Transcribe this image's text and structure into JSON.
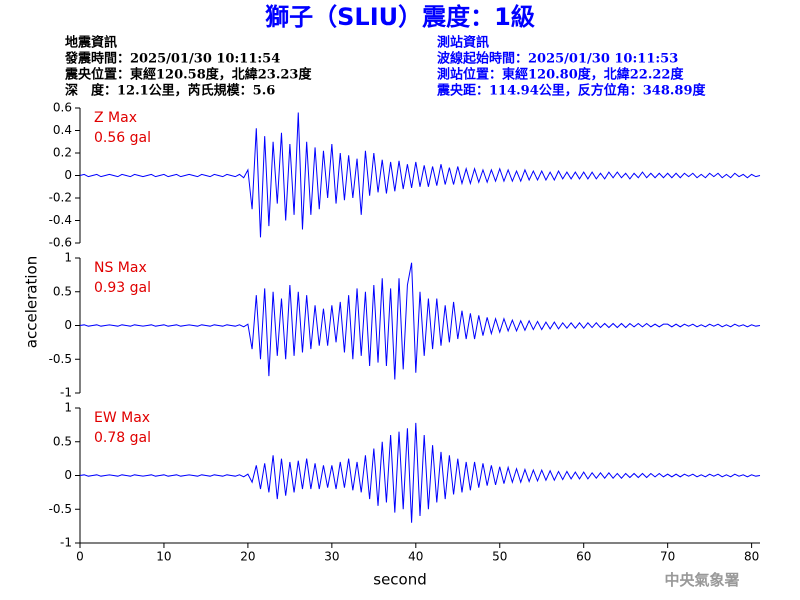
{
  "header": {
    "title": "獅子（SLIU）震度：1級",
    "left": [
      "地震資訊",
      "發震時間：2025/01/30 10:11:54",
      "震央位置：東經120.58度，北緯23.23度",
      "深　度：12.1公里，芮氏規模：5.6"
    ],
    "right": [
      "測站資訊",
      "波線起始時間：2025/01/30 10:11:53",
      "測站位置：東經120.80度，北緯22.22度",
      "震央距：114.94公里，反方位角：348.89度"
    ]
  },
  "footer": "中央氣象署",
  "chart_data": {
    "type": "line",
    "xlabel": "second",
    "ylabel": "acceleration",
    "xlim": [
      0,
      81
    ],
    "xticks": [
      0,
      10,
      20,
      30,
      40,
      50,
      60,
      70,
      80
    ],
    "x": [
      0,
      0.5,
      1,
      1.5,
      2,
      2.5,
      3,
      3.5,
      4,
      4.5,
      5,
      5.5,
      6,
      6.5,
      7,
      7.5,
      8,
      8.5,
      9,
      9.5,
      10,
      10.5,
      11,
      11.5,
      12,
      12.5,
      13,
      13.5,
      14,
      14.5,
      15,
      15.5,
      16,
      16.5,
      17,
      17.5,
      18,
      18.5,
      19,
      19.5,
      20,
      20.5,
      21,
      21.5,
      22,
      22.5,
      23,
      23.5,
      24,
      24.5,
      25,
      25.5,
      26,
      26.5,
      27,
      27.5,
      28,
      28.5,
      29,
      29.5,
      30,
      30.5,
      31,
      31.5,
      32,
      32.5,
      33,
      33.5,
      34,
      34.5,
      35,
      35.5,
      36,
      36.5,
      37,
      37.5,
      38,
      38.5,
      39,
      39.5,
      40,
      40.5,
      41,
      41.5,
      42,
      42.5,
      43,
      43.5,
      44,
      44.5,
      45,
      45.5,
      46,
      46.5,
      47,
      47.5,
      48,
      48.5,
      49,
      49.5,
      50,
      50.5,
      51,
      51.5,
      52,
      52.5,
      53,
      53.5,
      54,
      54.5,
      55,
      55.5,
      56,
      56.5,
      57,
      57.5,
      58,
      58.5,
      59,
      59.5,
      60,
      60.5,
      61,
      61.5,
      62,
      62.5,
      63,
      63.5,
      64,
      64.5,
      65,
      65.5,
      66,
      66.5,
      67,
      67.5,
      68,
      68.5,
      69,
      69.5,
      70,
      70.5,
      71,
      71.5,
      72,
      72.5,
      73,
      73.5,
      74,
      74.5,
      75,
      75.5,
      76,
      76.5,
      77,
      77.5,
      78,
      78.5,
      79,
      79.5,
      80,
      80.5,
      81
    ],
    "series": [
      {
        "name": "Z Max",
        "max_label": "0.56 gal",
        "color": "#0000ff",
        "ylim": [
          -0.6,
          0.6
        ],
        "yticks": [
          0.6,
          0.4,
          0.2,
          0,
          -0.2,
          -0.4,
          -0.6
        ],
        "values": [
          0,
          0.01,
          -0.01,
          0,
          0.01,
          -0.01,
          0,
          0.01,
          0,
          -0.01,
          0.01,
          0,
          -0.01,
          0.01,
          0,
          -0.01,
          0,
          0.01,
          -0.01,
          0,
          0.01,
          -0.01,
          0,
          0.01,
          -0.01,
          0,
          0.01,
          0,
          -0.01,
          0.01,
          0,
          -0.01,
          0.01,
          0,
          -0.01,
          0.01,
          0,
          -0.01,
          0.01,
          -0.02,
          0.05,
          -0.3,
          0.42,
          -0.55,
          0.35,
          -0.45,
          0.3,
          -0.25,
          0.38,
          -0.4,
          0.28,
          -0.35,
          0.56,
          -0.48,
          0.3,
          -0.35,
          0.25,
          -0.3,
          0.22,
          -0.2,
          0.28,
          -0.25,
          0.2,
          -0.22,
          0.18,
          -0.2,
          0.15,
          -0.35,
          0.22,
          -0.18,
          0.2,
          -0.15,
          0.14,
          -0.16,
          0.12,
          -0.14,
          0.13,
          -0.12,
          0.1,
          -0.11,
          0.12,
          -0.1,
          0.09,
          -0.1,
          0.08,
          -0.09,
          0.1,
          -0.08,
          0.07,
          -0.08,
          0.08,
          -0.07,
          0.06,
          -0.07,
          0.06,
          -0.06,
          0.05,
          -0.06,
          0.05,
          -0.05,
          0.06,
          -0.05,
          0.05,
          -0.05,
          0.04,
          -0.05,
          0.05,
          -0.04,
          0.04,
          -0.04,
          0.04,
          -0.04,
          0.03,
          -0.04,
          0.04,
          -0.03,
          0.03,
          -0.03,
          0.03,
          -0.03,
          0.03,
          -0.03,
          0.03,
          -0.03,
          0.02,
          -0.03,
          0.03,
          -0.02,
          0.03,
          -0.02,
          0.02,
          -0.03,
          0.02,
          -0.02,
          0.03,
          -0.02,
          0.02,
          -0.02,
          0.02,
          -0.02,
          0.02,
          -0.02,
          0.02,
          -0.02,
          0.02,
          -0.01,
          0.02,
          -0.02,
          0.01,
          -0.02,
          0.02,
          -0.01,
          0.02,
          -0.02,
          0.01,
          -0.02,
          0.02,
          -0.01,
          0.01,
          -0.02,
          0.01,
          -0.01,
          0
        ]
      },
      {
        "name": "NS Max",
        "max_label": "0.93 gal",
        "color": "#0000ff",
        "ylim": [
          -1,
          1
        ],
        "yticks": [
          1,
          0.5,
          0,
          -0.5,
          -1
        ],
        "values": [
          0,
          0.01,
          -0.01,
          0,
          0.01,
          -0.01,
          0,
          0.01,
          0,
          -0.01,
          0.01,
          0,
          -0.01,
          0.01,
          0,
          -0.01,
          0,
          0.01,
          -0.01,
          0,
          0.01,
          -0.01,
          0,
          0.01,
          -0.01,
          0,
          0.01,
          0,
          -0.01,
          0.01,
          0,
          -0.01,
          0.01,
          0,
          -0.01,
          0.01,
          0,
          -0.01,
          0.01,
          -0.02,
          0.02,
          -0.35,
          0.45,
          -0.5,
          0.55,
          -0.75,
          0.5,
          -0.45,
          0.4,
          -0.5,
          0.6,
          -0.45,
          0.5,
          -0.4,
          0.45,
          -0.35,
          0.3,
          -0.3,
          0.25,
          -0.3,
          0.3,
          -0.25,
          0.35,
          -0.4,
          0.45,
          -0.5,
          0.55,
          -0.45,
          0.5,
          -0.6,
          0.6,
          -0.55,
          0.7,
          -0.6,
          0.55,
          -0.8,
          0.7,
          -0.65,
          0.6,
          0.93,
          -0.7,
          0.5,
          -0.45,
          0.4,
          -0.35,
          0.4,
          -0.3,
          0.3,
          -0.25,
          0.35,
          -0.2,
          0.22,
          -0.2,
          0.18,
          -0.2,
          0.15,
          -0.15,
          0.12,
          -0.12,
          0.1,
          -0.1,
          0.1,
          -0.08,
          0.08,
          -0.08,
          0.07,
          -0.07,
          0.07,
          -0.06,
          0.06,
          -0.06,
          0.05,
          -0.05,
          0.05,
          -0.05,
          0.04,
          -0.04,
          0.04,
          -0.04,
          0.04,
          -0.04,
          0.04,
          -0.03,
          0.04,
          -0.03,
          0.03,
          -0.03,
          0.03,
          -0.03,
          0.03,
          -0.03,
          0.03,
          -0.02,
          0.03,
          -0.02,
          0.03,
          -0.02,
          0.02,
          -0.02,
          0.02,
          0.02,
          -0.02,
          0.02,
          -0.02,
          0.02,
          -0.01,
          0.02,
          -0.02,
          0.01,
          -0.02,
          0.02,
          -0.01,
          0.02,
          -0.02,
          0.01,
          -0.02,
          0.02,
          -0.01,
          0.01,
          -0.02,
          0.01,
          -0.01,
          0
        ]
      },
      {
        "name": "EW Max",
        "max_label": "0.78 gal",
        "color": "#0000ff",
        "ylim": [
          -1,
          1
        ],
        "yticks": [
          1,
          0.5,
          0,
          -0.5,
          -1
        ],
        "values": [
          0,
          0.01,
          -0.01,
          0,
          0.01,
          -0.01,
          0,
          0.01,
          0,
          -0.01,
          0.01,
          0,
          -0.01,
          0.01,
          0,
          -0.01,
          0,
          0.01,
          -0.01,
          0,
          0.01,
          -0.01,
          0,
          0.01,
          -0.01,
          0,
          0.01,
          0,
          -0.01,
          0.01,
          0,
          -0.01,
          0.01,
          0,
          -0.01,
          0.01,
          0,
          -0.01,
          0.01,
          -0.02,
          0.02,
          -0.1,
          0.15,
          -0.2,
          0.18,
          -0.25,
          0.3,
          -0.35,
          0.25,
          -0.3,
          0.2,
          -0.25,
          0.22,
          -0.2,
          0.25,
          -0.2,
          0.18,
          -0.2,
          0.15,
          -0.18,
          0.15,
          -0.2,
          0.2,
          -0.18,
          0.25,
          -0.22,
          0.2,
          -0.25,
          0.3,
          -0.35,
          0.4,
          -0.45,
          0.5,
          -0.4,
          0.6,
          -0.55,
          0.65,
          -0.5,
          0.7,
          -0.7,
          0.78,
          -0.6,
          0.6,
          -0.5,
          0.45,
          -0.4,
          0.35,
          -0.35,
          0.3,
          -0.28,
          0.25,
          -0.25,
          0.2,
          -0.22,
          0.2,
          -0.18,
          0.18,
          -0.15,
          0.15,
          -0.14,
          0.13,
          -0.12,
          0.12,
          -0.1,
          0.1,
          -0.1,
          0.09,
          -0.09,
          0.08,
          -0.08,
          0.08,
          -0.07,
          0.07,
          -0.07,
          0.06,
          -0.06,
          0.06,
          -0.05,
          0.05,
          -0.05,
          0.05,
          -0.05,
          0.04,
          -0.04,
          0.04,
          -0.04,
          0.04,
          -0.04,
          0.03,
          -0.04,
          0.03,
          -0.03,
          0.03,
          -0.03,
          0.03,
          -0.03,
          0.03,
          -0.02,
          0.03,
          -0.02,
          0.02,
          -0.02,
          0.02,
          -0.02,
          0.02,
          -0.01,
          0.02,
          -0.02,
          0.01,
          -0.02,
          0.02,
          -0.01,
          0.02,
          -0.02,
          0.01,
          -0.02,
          0.02,
          -0.01,
          0.01,
          -0.02,
          0.01,
          -0.01,
          0
        ]
      }
    ]
  }
}
